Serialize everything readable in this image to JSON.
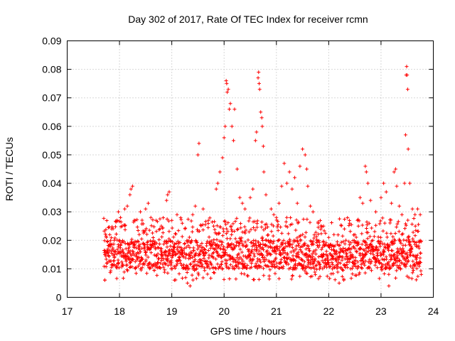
{
  "chart_data": {
    "type": "scatter",
    "title": "Day 302 of 2017, Rate Of TEC Index for receiver rcmn",
    "xlabel": "GPS time / hours",
    "ylabel": "ROTI / TECUs",
    "xlim": [
      17,
      24
    ],
    "ylim": [
      0,
      0.09
    ],
    "x_ticks": [
      "17",
      "18",
      "19",
      "20",
      "21",
      "22",
      "23",
      "24"
    ],
    "y_ticks": [
      "0",
      "0.01",
      "0.02",
      "0.03",
      "0.04",
      "0.05",
      "0.06",
      "0.07",
      "0.08",
      "0.09"
    ],
    "grid": true,
    "marker": "+",
    "color": "#ff0000",
    "background_band": {
      "x_start": 17.7,
      "x_end": 23.77,
      "y_low": 0.01,
      "y_high": 0.02
    },
    "series": [
      {
        "name": "ROTI",
        "points": [
          [
            17.72,
            0.006
          ],
          [
            17.75,
            0.021
          ],
          [
            17.8,
            0.018
          ],
          [
            17.85,
            0.024
          ],
          [
            17.9,
            0.02
          ],
          [
            17.95,
            0.027
          ],
          [
            17.98,
            0.03
          ],
          [
            18.02,
            0.028
          ],
          [
            18.05,
            0.025
          ],
          [
            18.1,
            0.031
          ],
          [
            18.15,
            0.032
          ],
          [
            18.2,
            0.036
          ],
          [
            18.22,
            0.038
          ],
          [
            18.25,
            0.039
          ],
          [
            18.3,
            0.027
          ],
          [
            18.4,
            0.03
          ],
          [
            18.5,
            0.031
          ],
          [
            18.55,
            0.033
          ],
          [
            18.6,
            0.028
          ],
          [
            18.7,
            0.027
          ],
          [
            18.8,
            0.025
          ],
          [
            18.9,
            0.034
          ],
          [
            18.92,
            0.036
          ],
          [
            18.95,
            0.037
          ],
          [
            19.0,
            0.027
          ],
          [
            19.05,
            0.006
          ],
          [
            19.1,
            0.029
          ],
          [
            19.2,
            0.026
          ],
          [
            19.3,
            0.005
          ],
          [
            19.35,
            0.004
          ],
          [
            19.4,
            0.029
          ],
          [
            19.45,
            0.032
          ],
          [
            19.5,
            0.05
          ],
          [
            19.52,
            0.054
          ],
          [
            19.6,
            0.031
          ],
          [
            19.7,
            0.027
          ],
          [
            19.8,
            0.025
          ],
          [
            19.85,
            0.038
          ],
          [
            19.88,
            0.04
          ],
          [
            19.92,
            0.044
          ],
          [
            19.97,
            0.049
          ],
          [
            20.0,
            0.056
          ],
          [
            20.02,
            0.06
          ],
          [
            20.04,
            0.076
          ],
          [
            20.05,
            0.075
          ],
          [
            20.06,
            0.072
          ],
          [
            20.08,
            0.073
          ],
          [
            20.1,
            0.066
          ],
          [
            20.12,
            0.068
          ],
          [
            20.15,
            0.06
          ],
          [
            20.18,
            0.055
          ],
          [
            20.2,
            0.066
          ],
          [
            20.25,
            0.045
          ],
          [
            20.3,
            0.035
          ],
          [
            20.35,
            0.033
          ],
          [
            20.4,
            0.031
          ],
          [
            20.5,
            0.035
          ],
          [
            20.55,
            0.038
          ],
          [
            20.6,
            0.055
          ],
          [
            20.62,
            0.058
          ],
          [
            20.65,
            0.077
          ],
          [
            20.66,
            0.079
          ],
          [
            20.67,
            0.075
          ],
          [
            20.68,
            0.073
          ],
          [
            20.7,
            0.065
          ],
          [
            20.72,
            0.063
          ],
          [
            20.73,
            0.06
          ],
          [
            20.75,
            0.053
          ],
          [
            20.76,
            0.044
          ],
          [
            20.8,
            0.036
          ],
          [
            20.9,
            0.031
          ],
          [
            20.95,
            0.029
          ],
          [
            21.0,
            0.028
          ],
          [
            21.05,
            0.033
          ],
          [
            21.1,
            0.039
          ],
          [
            21.15,
            0.047
          ],
          [
            21.2,
            0.04
          ],
          [
            21.25,
            0.044
          ],
          [
            21.3,
            0.038
          ],
          [
            21.35,
            0.042
          ],
          [
            21.4,
            0.033
          ],
          [
            21.45,
            0.046
          ],
          [
            21.5,
            0.052
          ],
          [
            21.55,
            0.05
          ],
          [
            21.58,
            0.045
          ],
          [
            21.6,
            0.039
          ],
          [
            21.65,
            0.032
          ],
          [
            21.7,
            0.03
          ],
          [
            21.8,
            0.026
          ],
          [
            21.9,
            0.025
          ],
          [
            22.0,
            0.021
          ],
          [
            22.1,
            0.022
          ],
          [
            22.2,
            0.005
          ],
          [
            22.3,
            0.024
          ],
          [
            22.4,
            0.026
          ],
          [
            22.5,
            0.022
          ],
          [
            22.55,
            0.027
          ],
          [
            22.6,
            0.035
          ],
          [
            22.65,
            0.033
          ],
          [
            22.7,
            0.046
          ],
          [
            22.72,
            0.044
          ],
          [
            22.75,
            0.04
          ],
          [
            22.8,
            0.034
          ],
          [
            22.9,
            0.03
          ],
          [
            23.0,
            0.035
          ],
          [
            23.05,
            0.04
          ],
          [
            23.1,
            0.037
          ],
          [
            23.15,
            0.004
          ],
          [
            23.2,
            0.033
          ],
          [
            23.25,
            0.044
          ],
          [
            23.28,
            0.045
          ],
          [
            23.3,
            0.039
          ],
          [
            23.35,
            0.032
          ],
          [
            23.4,
            0.029
          ],
          [
            23.45,
            0.04
          ],
          [
            23.47,
            0.057
          ],
          [
            23.48,
            0.078
          ],
          [
            23.49,
            0.081
          ],
          [
            23.5,
            0.078
          ],
          [
            23.51,
            0.073
          ],
          [
            23.52,
            0.052
          ],
          [
            23.55,
            0.04
          ],
          [
            23.6,
            0.031
          ],
          [
            23.65,
            0.029
          ],
          [
            23.7,
            0.031
          ],
          [
            23.75,
            0.029
          ],
          [
            23.77,
            0.008
          ]
        ]
      }
    ]
  }
}
